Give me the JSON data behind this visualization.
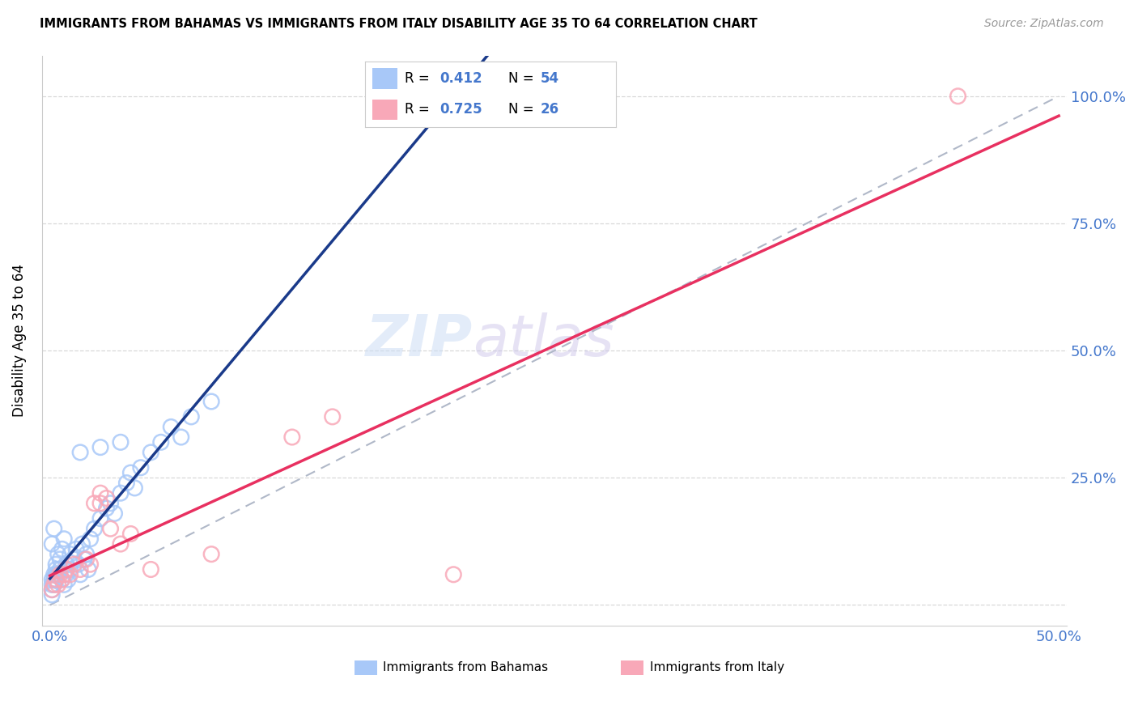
{
  "title": "IMMIGRANTS FROM BAHAMAS VS IMMIGRANTS FROM ITALY DISABILITY AGE 35 TO 64 CORRELATION CHART",
  "source": "Source: ZipAtlas.com",
  "ylabel": "Disability Age 35 to 64",
  "bahamas_R": 0.412,
  "bahamas_N": 54,
  "italy_R": 0.725,
  "italy_N": 26,
  "bahamas_color": "#a8c8f8",
  "italy_color": "#f8a8b8",
  "bahamas_line_color": "#1a3a8a",
  "italy_line_color": "#e83060",
  "diagonal_color": "#b0b8c8",
  "legend_color": "#4477cc",
  "bahamas_x": [
    0.001,
    0.001,
    0.002,
    0.002,
    0.003,
    0.003,
    0.004,
    0.004,
    0.005,
    0.005,
    0.006,
    0.006,
    0.007,
    0.007,
    0.008,
    0.008,
    0.009,
    0.01,
    0.01,
    0.012,
    0.013,
    0.014,
    0.015,
    0.016,
    0.017,
    0.018,
    0.019,
    0.02,
    0.022,
    0.025,
    0.028,
    0.03,
    0.032,
    0.035,
    0.038,
    0.04,
    0.042,
    0.045,
    0.05,
    0.055,
    0.06,
    0.065,
    0.07,
    0.08,
    0.001,
    0.002,
    0.003,
    0.015,
    0.025,
    0.035,
    0.001,
    0.001,
    0.002,
    0.003
  ],
  "bahamas_y": [
    0.05,
    0.12,
    0.06,
    0.15,
    0.07,
    0.08,
    0.06,
    0.1,
    0.07,
    0.09,
    0.05,
    0.11,
    0.04,
    0.13,
    0.06,
    0.08,
    0.05,
    0.07,
    0.1,
    0.09,
    0.11,
    0.08,
    0.06,
    0.12,
    0.09,
    0.1,
    0.07,
    0.13,
    0.15,
    0.17,
    0.19,
    0.2,
    0.18,
    0.22,
    0.24,
    0.26,
    0.23,
    0.27,
    0.3,
    0.32,
    0.35,
    0.33,
    0.37,
    0.4,
    0.04,
    0.05,
    0.06,
    0.3,
    0.31,
    0.32,
    0.03,
    0.02,
    0.04,
    0.05
  ],
  "italy_x": [
    0.001,
    0.002,
    0.003,
    0.004,
    0.005,
    0.006,
    0.007,
    0.008,
    0.01,
    0.012,
    0.015,
    0.018,
    0.02,
    0.022,
    0.025,
    0.025,
    0.028,
    0.03,
    0.035,
    0.04,
    0.05,
    0.08,
    0.12,
    0.14,
    0.2,
    0.45
  ],
  "italy_y": [
    0.03,
    0.04,
    0.05,
    0.04,
    0.06,
    0.05,
    0.06,
    0.07,
    0.06,
    0.08,
    0.07,
    0.09,
    0.08,
    0.2,
    0.22,
    0.2,
    0.21,
    0.15,
    0.12,
    0.14,
    0.07,
    0.1,
    0.33,
    0.37,
    0.06,
    1.0
  ],
  "x_ticks": [
    0.0,
    0.1,
    0.2,
    0.3,
    0.4,
    0.5
  ],
  "x_ticklabels": [
    "0.0%",
    "",
    "",
    "",
    "",
    "50.0%"
  ],
  "y_ticks": [
    0.0,
    0.25,
    0.5,
    0.75,
    1.0
  ],
  "y_ticklabels_right": [
    "",
    "25.0%",
    "50.0%",
    "75.0%",
    "100.0%"
  ]
}
